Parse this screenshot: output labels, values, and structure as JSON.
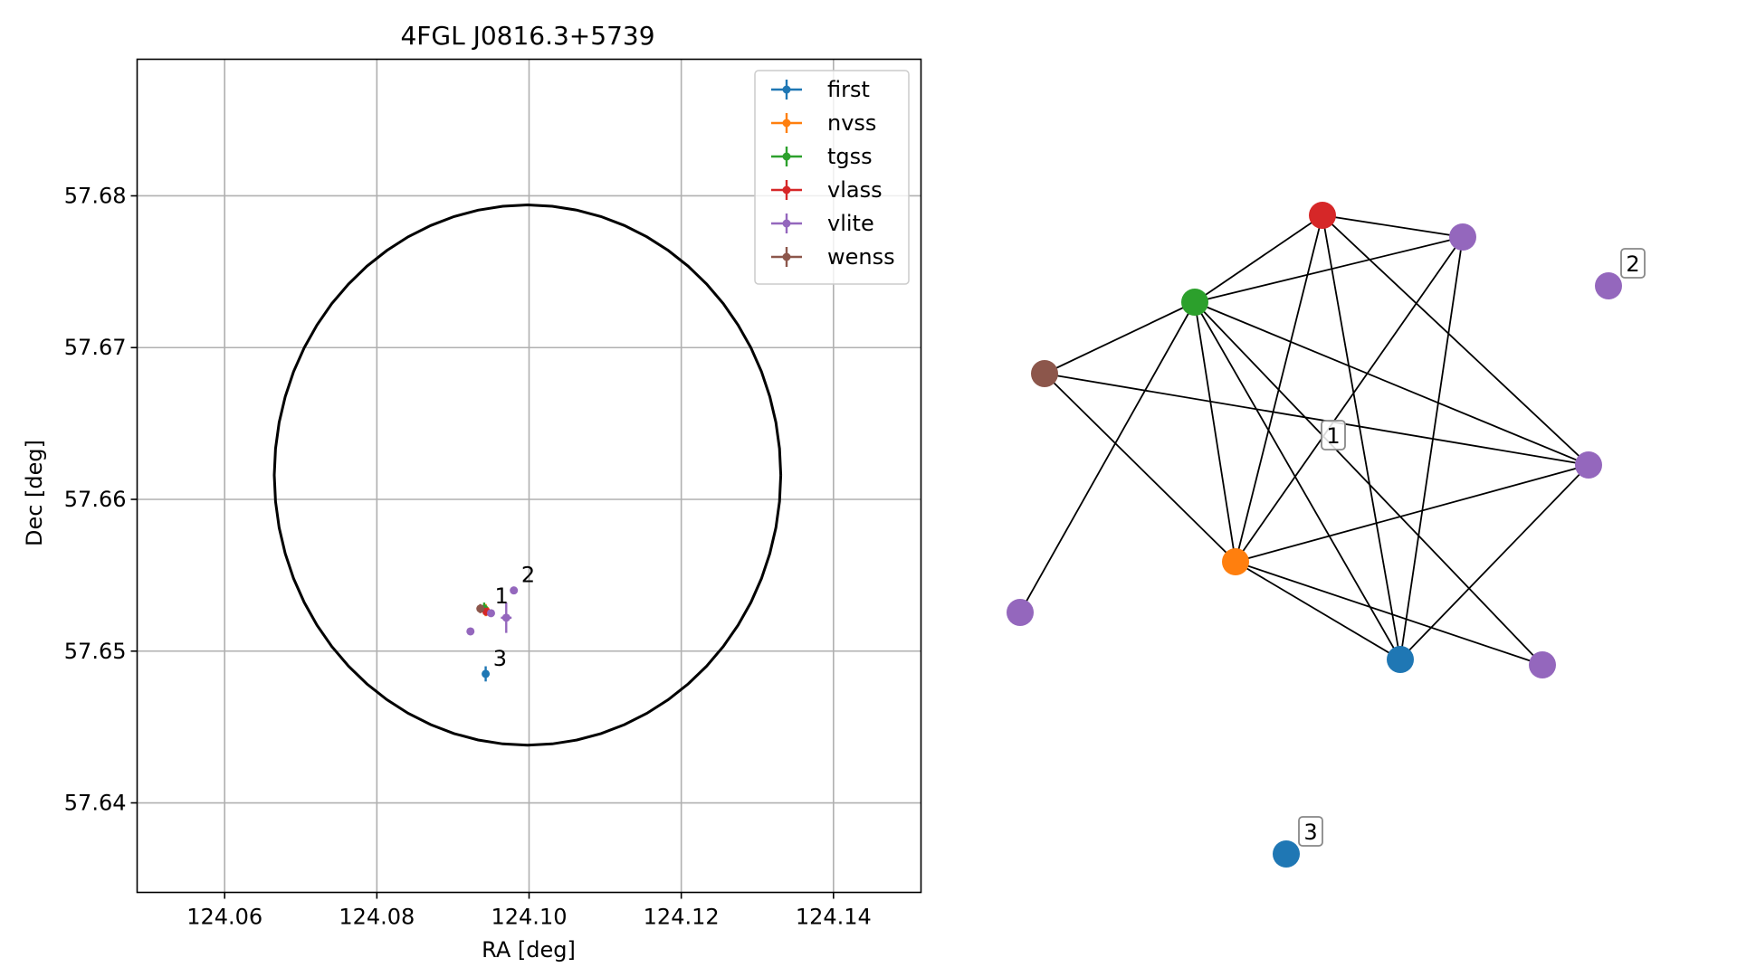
{
  "chart_data": [
    {
      "type": "scatter",
      "title": "4FGL J0816.3+5739",
      "xlabel": "RA [deg]",
      "ylabel": "Dec [deg]",
      "xlim": [
        124.0485,
        124.1515
      ],
      "ylim": [
        57.6341,
        57.689
      ],
      "xticks": [
        124.06,
        124.08,
        124.1,
        124.12,
        124.14
      ],
      "xtick_labels": [
        "124.06",
        "124.08",
        "124.10",
        "124.12",
        "124.14"
      ],
      "yticks": [
        57.64,
        57.65,
        57.66,
        57.67,
        57.68
      ],
      "ytick_labels": [
        "57.64",
        "57.65",
        "57.66",
        "57.67",
        "57.68"
      ],
      "grid": true,
      "legend_position": "top-right",
      "circle": {
        "center_ra": 124.0998,
        "center_dec": 57.6616,
        "radius_deg": 0.0178,
        "color": "#000000"
      },
      "series": [
        {
          "name": "first",
          "color": "#1f77b4",
          "points": [
            {
              "x": 124.0943,
              "y": 57.6485,
              "xerr": 0.0003,
              "yerr": 0.0005
            }
          ]
        },
        {
          "name": "nvss",
          "color": "#ff7f0e",
          "points": [
            {
              "x": 124.0943,
              "y": 57.6527,
              "xerr": 0.0005,
              "yerr": 0.0004
            }
          ]
        },
        {
          "name": "tgss",
          "color": "#2ca02c",
          "points": [
            {
              "x": 124.0941,
              "y": 57.6528,
              "xerr": 0.0004,
              "yerr": 0.0004
            }
          ]
        },
        {
          "name": "vlass",
          "color": "#d62728",
          "points": [
            {
              "x": 124.0944,
              "y": 57.6526,
              "xerr": 0.0002,
              "yerr": 0.0002
            }
          ]
        },
        {
          "name": "vlite",
          "color": "#9467bd",
          "points": [
            {
              "x": 124.098,
              "y": 57.654,
              "xerr": 0.0002,
              "yerr": 0.0002
            },
            {
              "x": 124.095,
              "y": 57.6525,
              "xerr": 0.0003,
              "yerr": 0.0002
            },
            {
              "x": 124.097,
              "y": 57.6522,
              "xerr": 0.0007,
              "yerr": 0.001
            },
            {
              "x": 124.0923,
              "y": 57.6513,
              "xerr": 0.0002,
              "yerr": 0.0002
            }
          ]
        },
        {
          "name": "wenss",
          "color": "#8c564b",
          "points": [
            {
              "x": 124.0936,
              "y": 57.6528,
              "xerr": 0.0004,
              "yerr": 0.0003
            }
          ]
        }
      ],
      "annotations": [
        {
          "text": "1",
          "x": 124.095,
          "y": 57.6529
        },
        {
          "text": "2",
          "x": 124.0985,
          "y": 57.6543
        },
        {
          "text": "3",
          "x": 124.0948,
          "y": 57.6488
        }
      ]
    },
    {
      "type": "network",
      "nodes": [
        {
          "id": "vlass",
          "color": "#d62728"
        },
        {
          "id": "vlite-a",
          "color": "#9467bd"
        },
        {
          "id": "vlite-b",
          "color": "#9467bd"
        },
        {
          "id": "tgss",
          "color": "#2ca02c"
        },
        {
          "id": "wenss",
          "color": "#8c564b"
        },
        {
          "id": "vlite-c",
          "color": "#9467bd"
        },
        {
          "id": "nvss",
          "color": "#ff7f0e"
        },
        {
          "id": "vlite-d",
          "color": "#9467bd"
        },
        {
          "id": "first-a",
          "color": "#1f77b4"
        },
        {
          "id": "vlite-e",
          "color": "#9467bd"
        },
        {
          "id": "first-b",
          "color": "#1f77b4"
        }
      ],
      "edges": [
        [
          "vlass",
          "tgss"
        ],
        [
          "vlass",
          "vlite-a"
        ],
        [
          "vlass",
          "nvss"
        ],
        [
          "vlass",
          "first-a"
        ],
        [
          "vlass",
          "vlite-c"
        ],
        [
          "tgss",
          "vlite-a"
        ],
        [
          "tgss",
          "wenss"
        ],
        [
          "tgss",
          "vlite-d"
        ],
        [
          "tgss",
          "nvss"
        ],
        [
          "tgss",
          "first-a"
        ],
        [
          "tgss",
          "vlite-c"
        ],
        [
          "tgss",
          "vlite-e"
        ],
        [
          "vlite-a",
          "nvss"
        ],
        [
          "vlite-a",
          "first-a"
        ],
        [
          "wenss",
          "vlite-c"
        ],
        [
          "wenss",
          "nvss"
        ],
        [
          "nvss",
          "vlite-c"
        ],
        [
          "nvss",
          "first-a"
        ],
        [
          "nvss",
          "vlite-e"
        ],
        [
          "first-a",
          "vlite-c"
        ]
      ],
      "labels": [
        {
          "text": "1",
          "node": "center"
        },
        {
          "text": "2",
          "node": "vlite-b"
        },
        {
          "text": "3",
          "node": "first-b"
        }
      ]
    }
  ]
}
